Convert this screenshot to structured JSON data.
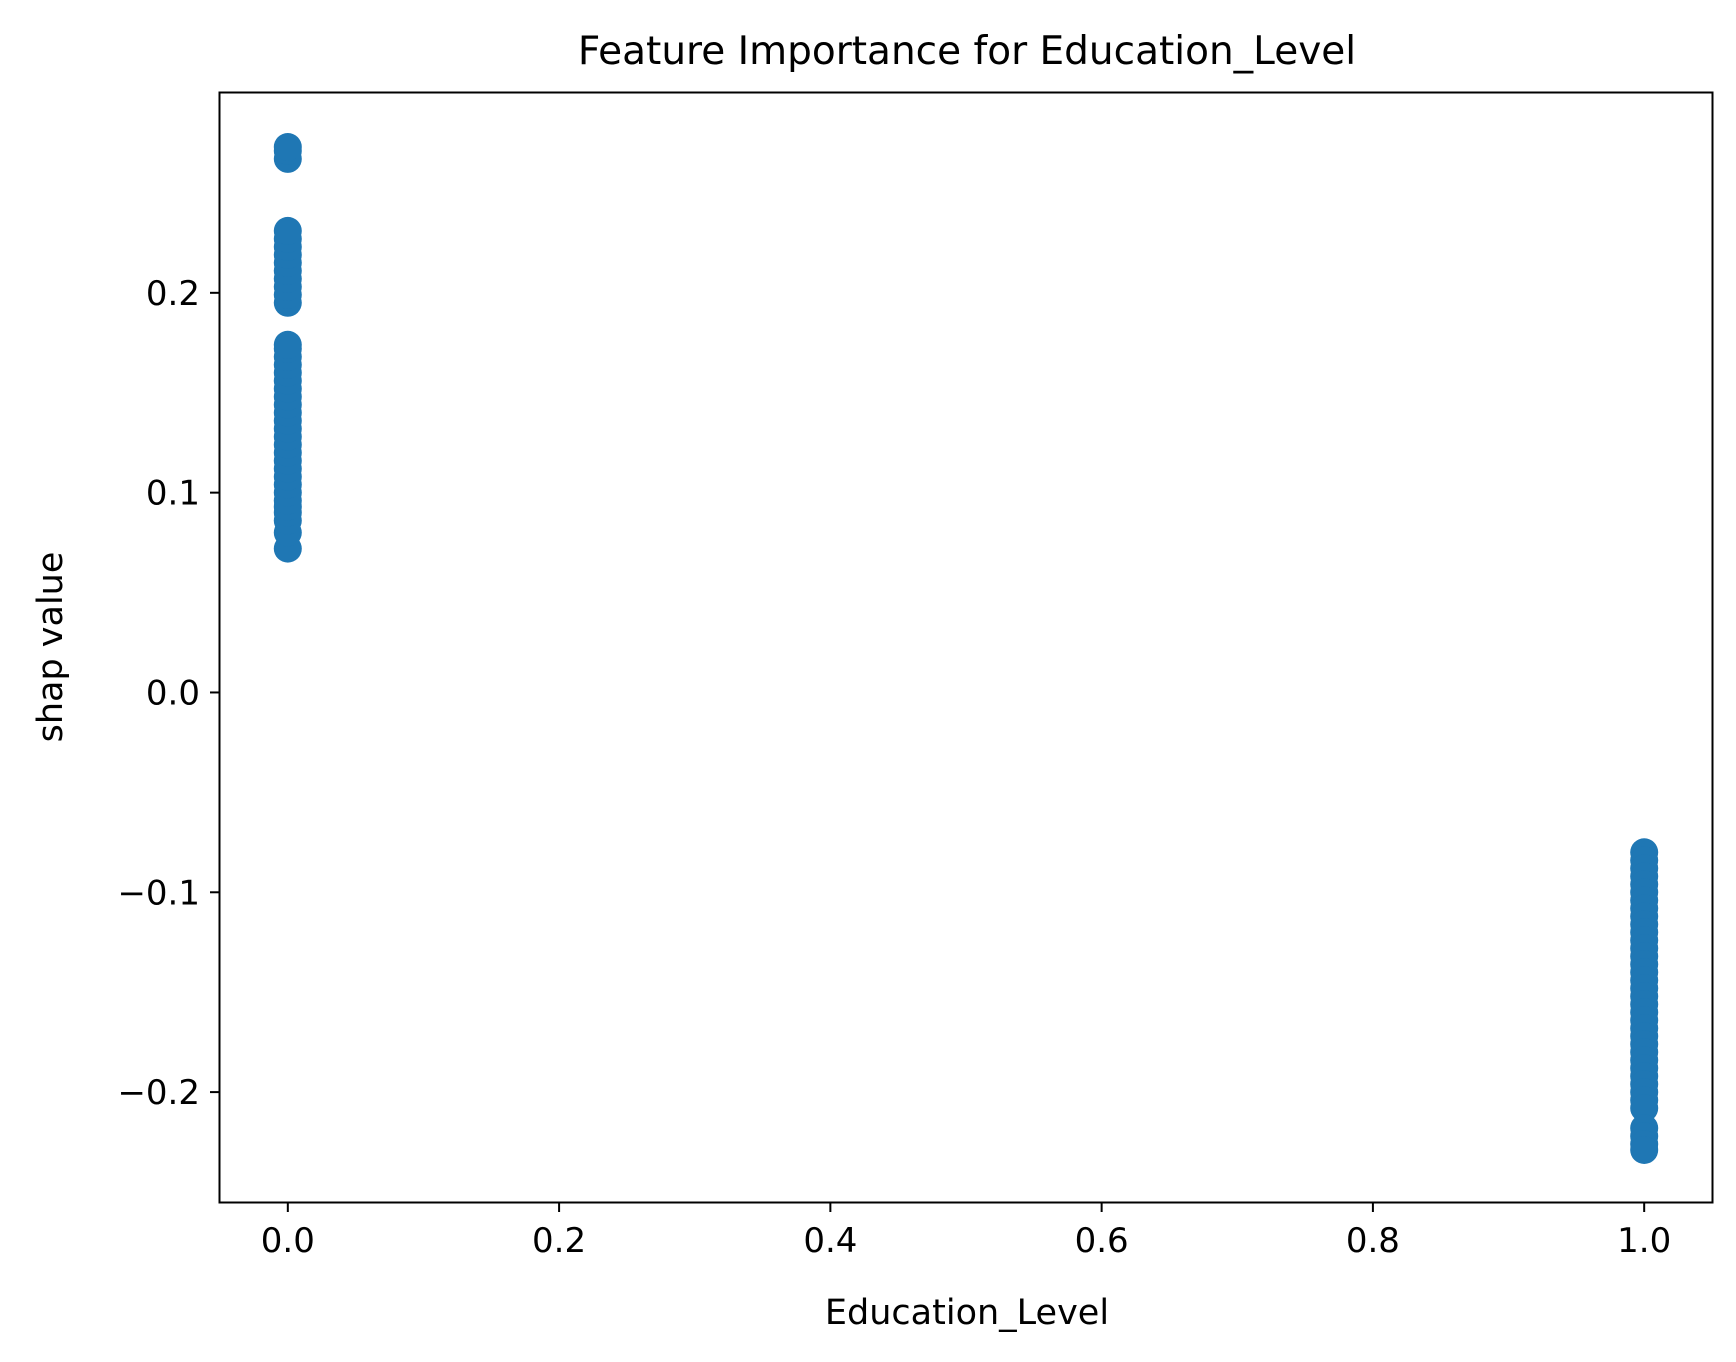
{
  "chart_data": {
    "type": "scatter",
    "title": "Feature Importance for Education_Level",
    "xlabel": "Education_Level",
    "ylabel": "shap value",
    "xlim": [
      -0.05,
      1.05
    ],
    "ylim": [
      -0.255,
      0.3
    ],
    "xticks": [
      {
        "value": 0.0,
        "label": "0.0"
      },
      {
        "value": 0.2,
        "label": "0.2"
      },
      {
        "value": 0.4,
        "label": "0.4"
      },
      {
        "value": 0.6,
        "label": "0.6"
      },
      {
        "value": 0.8,
        "label": "0.8"
      },
      {
        "value": 1.0,
        "label": "1.0"
      }
    ],
    "yticks": [
      {
        "value": -0.2,
        "label": "−0.2"
      },
      {
        "value": -0.1,
        "label": "−0.1"
      },
      {
        "value": 0.0,
        "label": "0.0"
      },
      {
        "value": 0.1,
        "label": "0.1"
      },
      {
        "value": 0.2,
        "label": "0.2"
      }
    ],
    "grid": false,
    "marker_color": "#1f77b4",
    "points": [
      [
        0,
        0.072
      ],
      [
        0,
        0.08
      ],
      [
        0,
        0.086
      ],
      [
        0,
        0.09
      ],
      [
        0,
        0.093
      ],
      [
        0,
        0.096
      ],
      [
        0,
        0.1
      ],
      [
        0,
        0.104
      ],
      [
        0,
        0.108
      ],
      [
        0,
        0.112
      ],
      [
        0,
        0.116
      ],
      [
        0,
        0.12
      ],
      [
        0,
        0.124
      ],
      [
        0,
        0.128
      ],
      [
        0,
        0.132
      ],
      [
        0,
        0.136
      ],
      [
        0,
        0.14
      ],
      [
        0,
        0.144
      ],
      [
        0,
        0.148
      ],
      [
        0,
        0.152
      ],
      [
        0,
        0.156
      ],
      [
        0,
        0.16
      ],
      [
        0,
        0.164
      ],
      [
        0,
        0.168
      ],
      [
        0,
        0.172
      ],
      [
        0,
        0.174
      ],
      [
        0,
        0.195
      ],
      [
        0,
        0.199
      ],
      [
        0,
        0.203
      ],
      [
        0,
        0.207
      ],
      [
        0,
        0.211
      ],
      [
        0,
        0.215
      ],
      [
        0,
        0.219
      ],
      [
        0,
        0.223
      ],
      [
        0,
        0.227
      ],
      [
        0,
        0.231
      ],
      [
        0,
        0.267
      ],
      [
        0,
        0.271
      ],
      [
        0,
        0.273
      ],
      [
        1,
        -0.08
      ],
      [
        1,
        -0.084
      ],
      [
        1,
        -0.088
      ],
      [
        1,
        -0.092
      ],
      [
        1,
        -0.096
      ],
      [
        1,
        -0.1
      ],
      [
        1,
        -0.104
      ],
      [
        1,
        -0.108
      ],
      [
        1,
        -0.112
      ],
      [
        1,
        -0.116
      ],
      [
        1,
        -0.12
      ],
      [
        1,
        -0.124
      ],
      [
        1,
        -0.128
      ],
      [
        1,
        -0.132
      ],
      [
        1,
        -0.136
      ],
      [
        1,
        -0.14
      ],
      [
        1,
        -0.144
      ],
      [
        1,
        -0.148
      ],
      [
        1,
        -0.152
      ],
      [
        1,
        -0.156
      ],
      [
        1,
        -0.16
      ],
      [
        1,
        -0.164
      ],
      [
        1,
        -0.168
      ],
      [
        1,
        -0.172
      ],
      [
        1,
        -0.176
      ],
      [
        1,
        -0.18
      ],
      [
        1,
        -0.184
      ],
      [
        1,
        -0.188
      ],
      [
        1,
        -0.192
      ],
      [
        1,
        -0.196
      ],
      [
        1,
        -0.2
      ],
      [
        1,
        -0.204
      ],
      [
        1,
        -0.208
      ],
      [
        1,
        -0.218
      ],
      [
        1,
        -0.222
      ],
      [
        1,
        -0.226
      ],
      [
        1,
        -0.229
      ]
    ]
  }
}
